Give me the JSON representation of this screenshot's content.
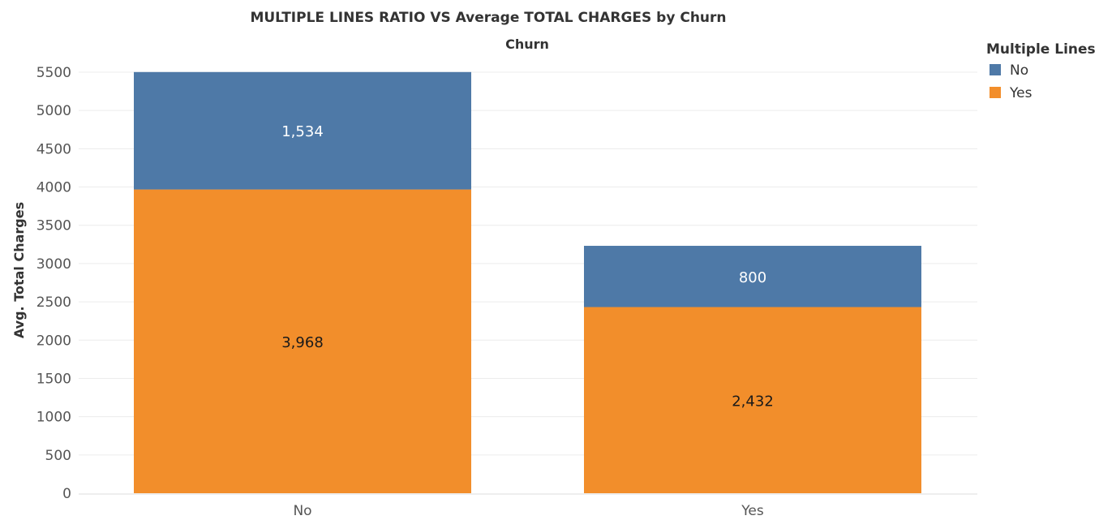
{
  "chart_data": {
    "type": "bar",
    "stacked": true,
    "title": "MULTIPLE LINES RATIO VS Average TOTAL CHARGES by Churn",
    "subtitle": "Churn",
    "xlabel": "",
    "ylabel": "Avg. Total Charges",
    "categories": [
      "No",
      "Yes"
    ],
    "series": [
      {
        "name": "Yes",
        "values": [
          3968,
          2432
        ],
        "labels": [
          "3,968",
          "2,432"
        ],
        "color": "#f28e2b",
        "label_color": "#1a1a1a"
      },
      {
        "name": "No",
        "values": [
          1534,
          800
        ],
        "labels": [
          "1,534",
          "800"
        ],
        "color": "#4e79a7",
        "label_color": "#ffffff"
      }
    ],
    "ylim": [
      0,
      5500
    ],
    "yticks": [
      0,
      500,
      1000,
      1500,
      2000,
      2500,
      3000,
      3500,
      4000,
      4500,
      5000,
      5500
    ],
    "grid": true,
    "legend": {
      "title": "Multiple Lines",
      "placement": "top-right",
      "items": [
        {
          "name": "No",
          "color": "#4e79a7"
        },
        {
          "name": "Yes",
          "color": "#f28e2b"
        }
      ]
    }
  }
}
